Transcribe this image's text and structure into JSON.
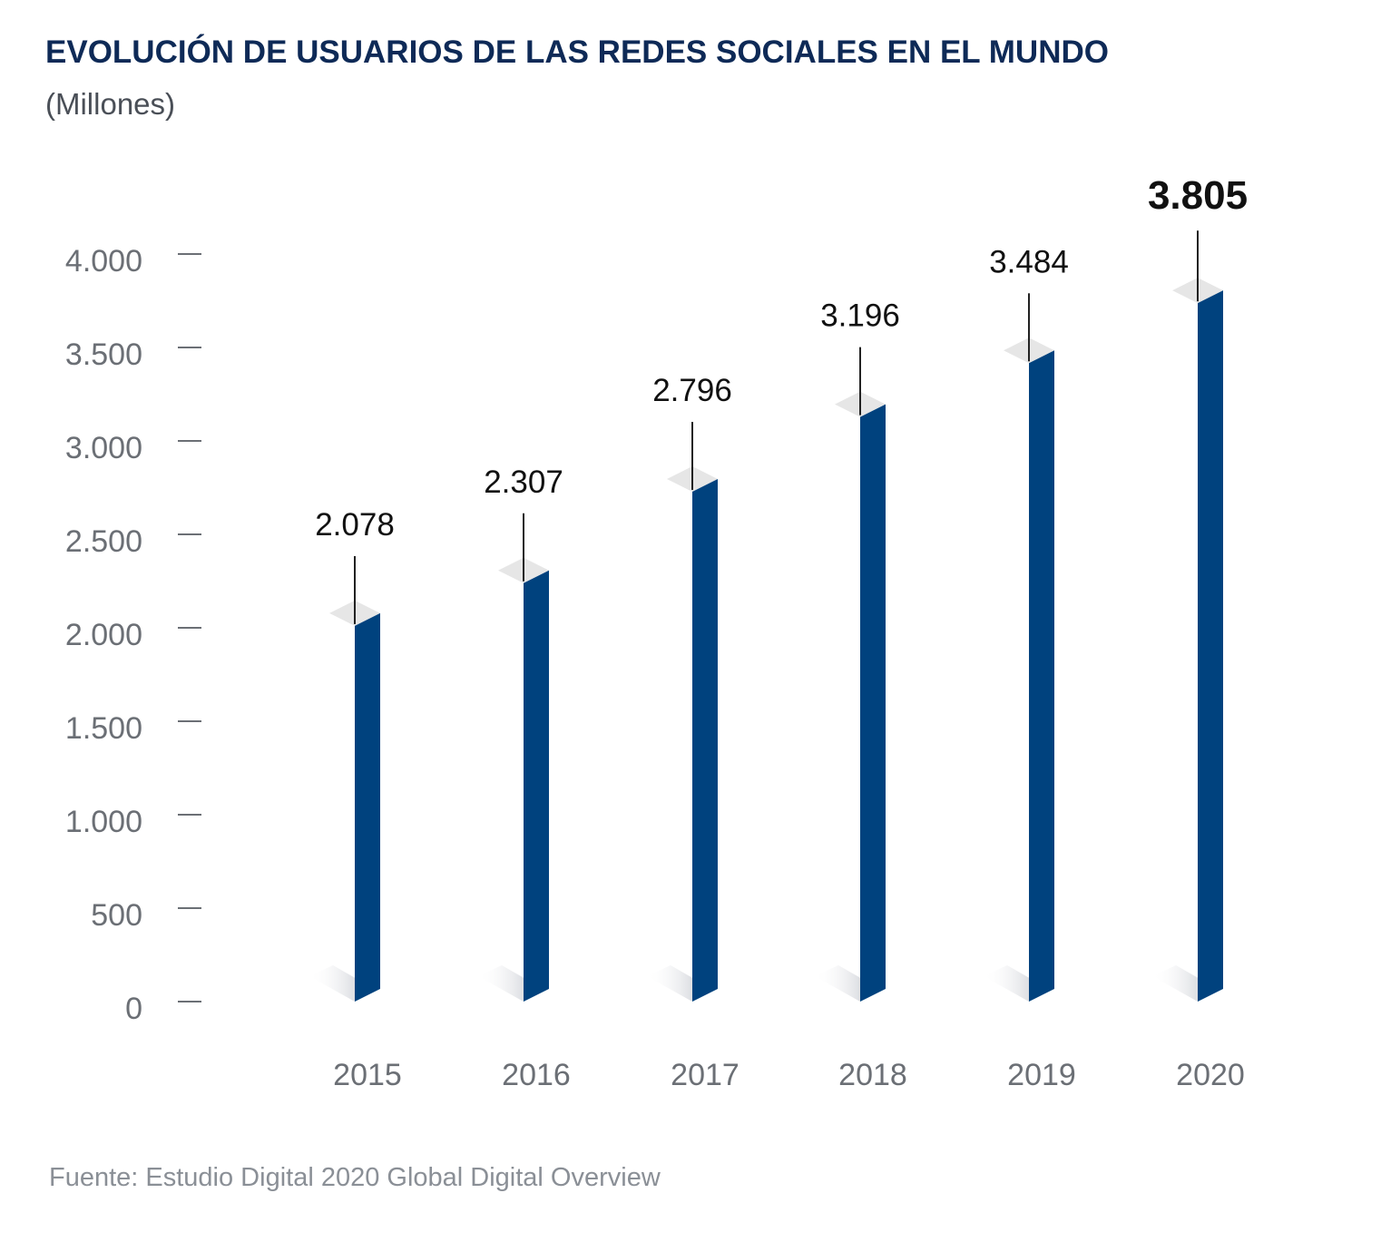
{
  "header": {
    "title": "EVOLUCIÓN DE USUARIOS DE LAS REDES SOCIALES EN EL MUNDO",
    "subtitle": "(Millones)"
  },
  "footer": {
    "source": "Fuente: Estudio Digital 2020 Global Digital Overview"
  },
  "colors": {
    "bar": "#00427e",
    "bar_top": "#e6e6e6",
    "title": "#0e2a57",
    "axis_text": "#6b6f75",
    "value_text": "#111111"
  },
  "chart_data": {
    "type": "bar",
    "categories": [
      "2015",
      "2016",
      "2017",
      "2018",
      "2019",
      "2020"
    ],
    "values": [
      2078,
      2307,
      2796,
      3196,
      3484,
      3805
    ],
    "value_labels": [
      "2.078",
      "2.307",
      "2.796",
      "3.196",
      "3.484",
      "3.805"
    ],
    "yticks": [
      0,
      500,
      1000,
      1500,
      2000,
      2500,
      3000,
      3500,
      4000
    ],
    "ytick_labels": [
      "0",
      "500",
      "1.000",
      "1.500",
      "2.000",
      "2.500",
      "3.000",
      "3.500",
      "4.000"
    ],
    "ylim": [
      0,
      4000
    ],
    "grid": false,
    "legend": "none"
  }
}
